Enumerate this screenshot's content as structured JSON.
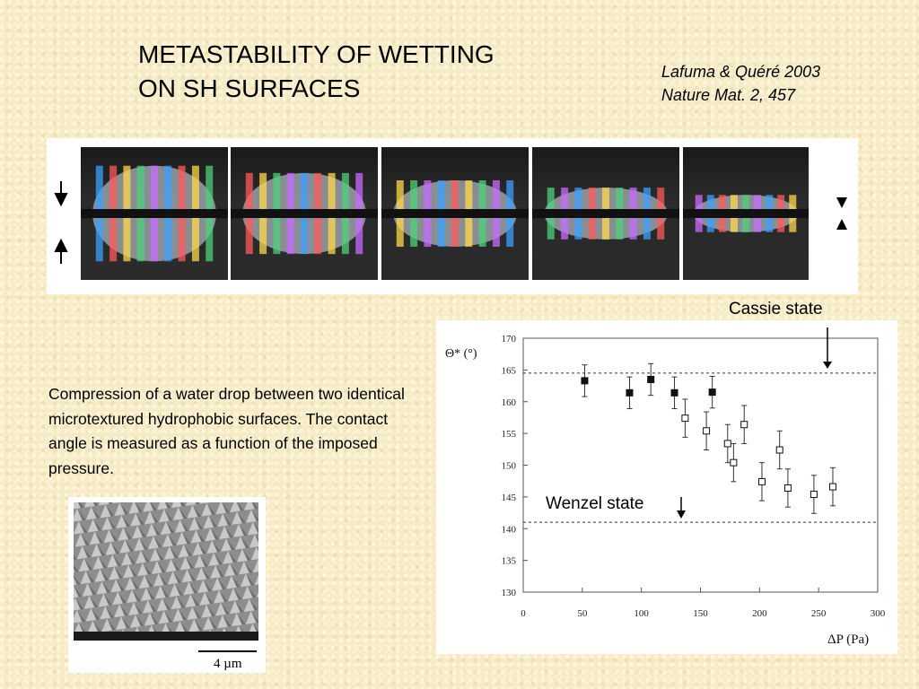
{
  "slide": {
    "title": "METASTABILITY OF WETTING\nON SH SURFACES",
    "reference": "Lafuma & Quéré 2003\nNature Mat. 2, 457",
    "caption": "Compression of a water drop between two identical microtextured hydrophobic surfaces. The contact angle is measured as a function of the imposed pressure.",
    "scale_bar_label": "4 µm",
    "cassie_label": "Cassie state",
    "wenzel_label": "Wenzel state"
  },
  "chart_data": {
    "type": "scatter",
    "ylabel": "Θ* (°)",
    "xlabel": "ΔP (Pa)",
    "xlim": [
      0,
      300
    ],
    "ylim": [
      130,
      170
    ],
    "x_ticks": [
      "0",
      "50",
      "100",
      "150",
      "200",
      "250",
      "300"
    ],
    "y_ticks": [
      "130",
      "135",
      "140",
      "145",
      "150",
      "155",
      "160",
      "165",
      "170"
    ],
    "reference_lines": [
      164.5,
      141
    ],
    "series": [
      {
        "marker": "filled-square",
        "points": [
          {
            "x": 52,
            "y": 163.3,
            "err": 2.5
          },
          {
            "x": 90,
            "y": 161.4,
            "err": 2.5
          },
          {
            "x": 108,
            "y": 163.5,
            "err": 2.5
          },
          {
            "x": 128,
            "y": 161.4,
            "err": 2.5
          },
          {
            "x": 160,
            "y": 161.5,
            "err": 2.5
          }
        ]
      },
      {
        "marker": "open-square",
        "points": [
          {
            "x": 137,
            "y": 157.4,
            "err": 3
          },
          {
            "x": 155,
            "y": 155.4,
            "err": 3
          },
          {
            "x": 173,
            "y": 153.4,
            "err": 3
          },
          {
            "x": 178,
            "y": 150.4,
            "err": 3
          },
          {
            "x": 187,
            "y": 156.4,
            "err": 3
          },
          {
            "x": 202,
            "y": 147.4,
            "err": 3
          },
          {
            "x": 217,
            "y": 152.4,
            "err": 3
          },
          {
            "x": 224,
            "y": 146.4,
            "err": 3
          },
          {
            "x": 246,
            "y": 145.4,
            "err": 3
          },
          {
            "x": 262,
            "y": 146.6,
            "err": 3
          }
        ]
      }
    ]
  }
}
